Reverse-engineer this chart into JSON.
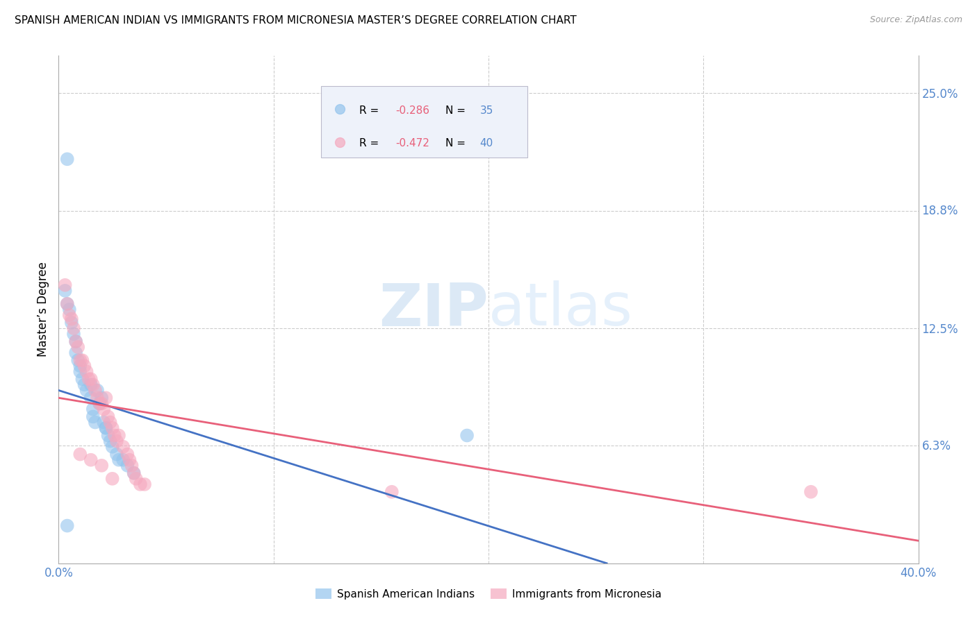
{
  "title": "SPANISH AMERICAN INDIAN VS IMMIGRANTS FROM MICRONESIA MASTER’S DEGREE CORRELATION CHART",
  "source": "Source: ZipAtlas.com",
  "ylabel": "Master’s Degree",
  "xlim": [
    0.0,
    0.4
  ],
  "ylim": [
    0.0,
    0.27
  ],
  "blue_R": -0.286,
  "blue_N": 35,
  "pink_R": -0.472,
  "pink_N": 40,
  "blue_color": "#93C4ED",
  "pink_color": "#F5A8BE",
  "blue_line_color": "#4472C4",
  "pink_line_color": "#E8607A",
  "blue_scatter_x": [
    0.004,
    0.003,
    0.004,
    0.005,
    0.006,
    0.007,
    0.008,
    0.008,
    0.009,
    0.01,
    0.01,
    0.011,
    0.012,
    0.013,
    0.015,
    0.015,
    0.016,
    0.016,
    0.017,
    0.018,
    0.019,
    0.02,
    0.021,
    0.022,
    0.023,
    0.024,
    0.025,
    0.027,
    0.028,
    0.03,
    0.032,
    0.035,
    0.19,
    0.004,
    0.022
  ],
  "blue_scatter_y": [
    0.215,
    0.145,
    0.138,
    0.135,
    0.128,
    0.122,
    0.118,
    0.112,
    0.108,
    0.105,
    0.102,
    0.098,
    0.095,
    0.092,
    0.095,
    0.088,
    0.082,
    0.078,
    0.075,
    0.092,
    0.085,
    0.088,
    0.075,
    0.072,
    0.068,
    0.065,
    0.062,
    0.058,
    0.055,
    0.055,
    0.052,
    0.048,
    0.068,
    0.02,
    0.072
  ],
  "pink_scatter_x": [
    0.003,
    0.004,
    0.005,
    0.006,
    0.007,
    0.008,
    0.009,
    0.01,
    0.011,
    0.012,
    0.013,
    0.014,
    0.015,
    0.016,
    0.017,
    0.018,
    0.019,
    0.02,
    0.021,
    0.022,
    0.023,
    0.024,
    0.025,
    0.026,
    0.027,
    0.028,
    0.03,
    0.032,
    0.033,
    0.034,
    0.035,
    0.036,
    0.038,
    0.04,
    0.155,
    0.35,
    0.01,
    0.015,
    0.02,
    0.025
  ],
  "pink_scatter_y": [
    0.148,
    0.138,
    0.132,
    0.13,
    0.125,
    0.118,
    0.115,
    0.108,
    0.108,
    0.105,
    0.102,
    0.098,
    0.098,
    0.095,
    0.092,
    0.088,
    0.085,
    0.085,
    0.082,
    0.088,
    0.078,
    0.075,
    0.072,
    0.068,
    0.065,
    0.068,
    0.062,
    0.058,
    0.055,
    0.052,
    0.048,
    0.045,
    0.042,
    0.042,
    0.038,
    0.038,
    0.058,
    0.055,
    0.052,
    0.045
  ],
  "blue_line_x": [
    0.0,
    0.255
  ],
  "blue_line_y": [
    0.092,
    0.0
  ],
  "pink_line_x": [
    0.0,
    0.4
  ],
  "pink_line_y": [
    0.088,
    0.012
  ],
  "grid_color": "#CCCCCC",
  "tick_label_color": "#5588CC",
  "right_ytick_vals": [
    0.0,
    0.063,
    0.125,
    0.188,
    0.25
  ],
  "right_yticklabels": [
    "",
    "6.3%",
    "12.5%",
    "18.8%",
    "25.0%"
  ],
  "xtick_vals": [
    0.0,
    0.1,
    0.2,
    0.3,
    0.4
  ],
  "xtick_labels": [
    "0.0%",
    "",
    "",
    "",
    "40.0%"
  ]
}
